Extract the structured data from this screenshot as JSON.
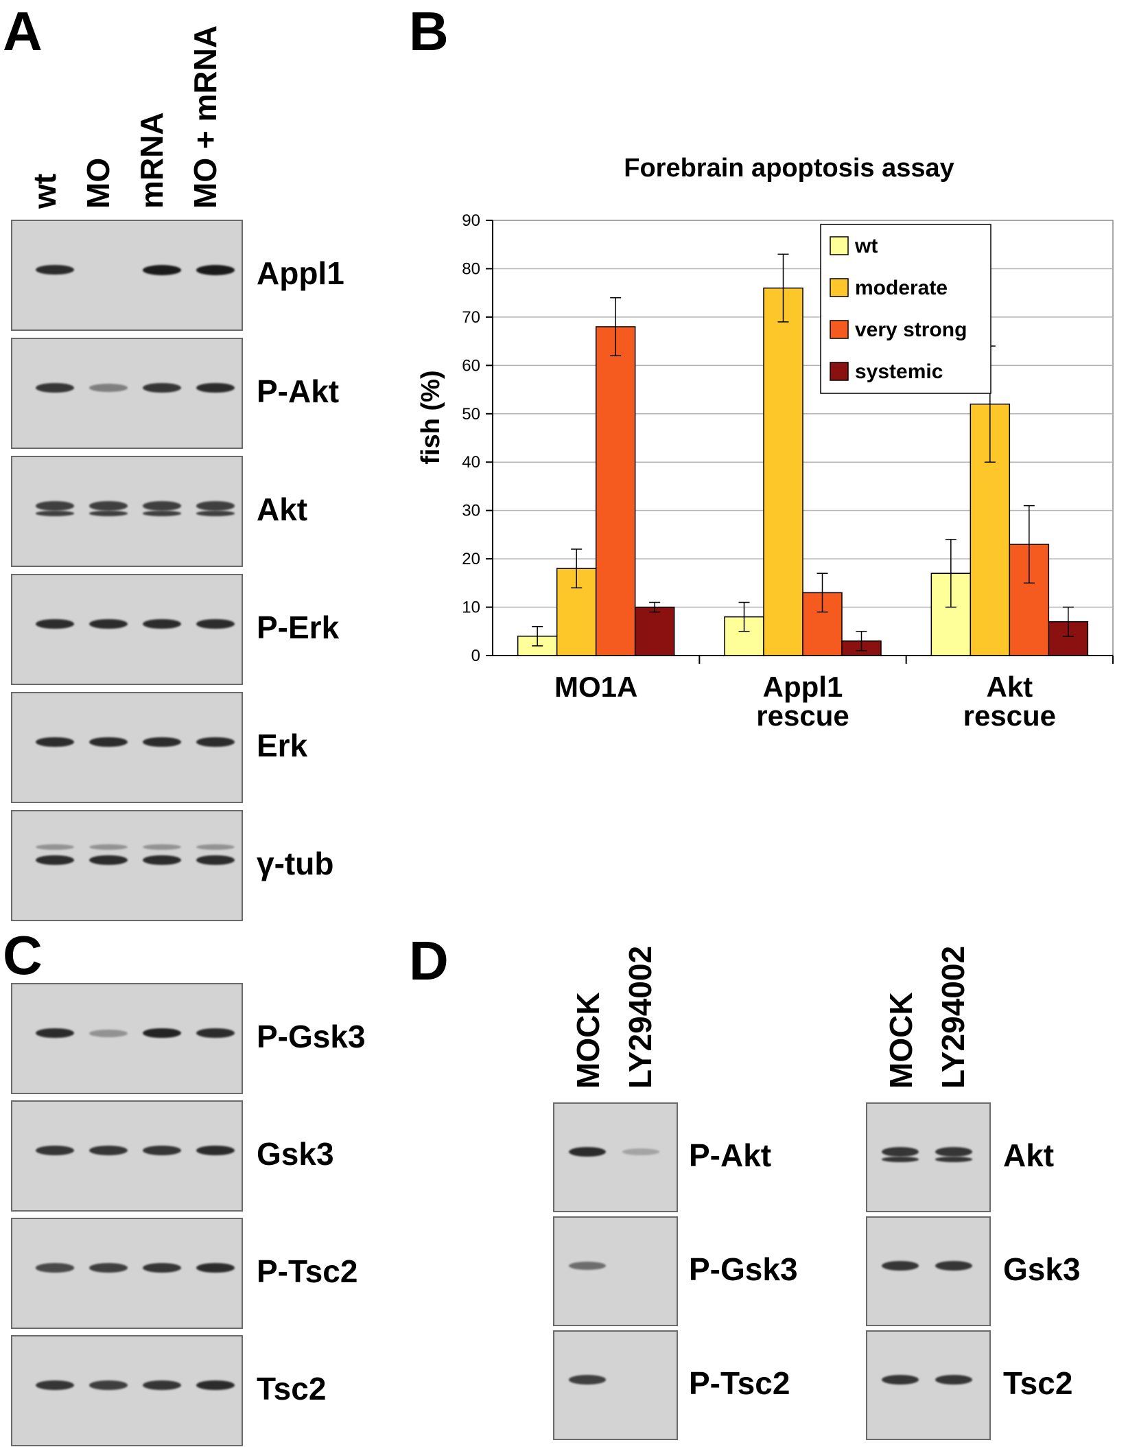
{
  "panels": {
    "A": {
      "letter": "A",
      "lanes": [
        "wt",
        "MO",
        "mRNA",
        "MO + mRNA"
      ],
      "blots": [
        {
          "label": "Appl1",
          "bands": [
            0.9,
            0.0,
            1.0,
            1.0
          ]
        },
        {
          "label": "P-Akt",
          "bands": [
            0.85,
            0.45,
            0.85,
            0.9
          ]
        },
        {
          "label": "Akt",
          "bands": [
            0.8,
            0.8,
            0.8,
            0.8
          ]
        },
        {
          "label": "P-Erk",
          "bands": [
            0.9,
            0.9,
            0.9,
            0.9
          ]
        },
        {
          "label": "Erk",
          "bands": [
            0.9,
            0.9,
            0.9,
            0.9
          ]
        },
        {
          "label": "γ-tub",
          "bands": [
            0.9,
            0.9,
            0.9,
            0.9
          ]
        }
      ]
    },
    "B": {
      "letter": "B"
    },
    "C": {
      "letter": "C",
      "blots": [
        {
          "label": "P-Gsk3",
          "bands": [
            0.9,
            0.35,
            0.95,
            0.9
          ]
        },
        {
          "label": "Gsk3",
          "bands": [
            0.85,
            0.85,
            0.85,
            0.9
          ]
        },
        {
          "label": "P-Tsc2",
          "bands": [
            0.75,
            0.8,
            0.85,
            0.9
          ]
        },
        {
          "label": "Tsc2",
          "bands": [
            0.85,
            0.8,
            0.85,
            0.9
          ]
        }
      ]
    },
    "D": {
      "letter": "D",
      "lanes": [
        "MOCK",
        "LY294002"
      ],
      "left_blots": [
        {
          "label": "P-Akt",
          "bands": [
            0.9,
            0.15
          ]
        },
        {
          "label": "P-Gsk3",
          "bands": [
            0.55,
            0.0
          ]
        },
        {
          "label": "P-Tsc2",
          "bands": [
            0.8,
            0.0
          ]
        }
      ],
      "right_blots": [
        {
          "label": "Akt",
          "bands": [
            0.85,
            0.85
          ]
        },
        {
          "label": "Gsk3",
          "bands": [
            0.85,
            0.85
          ]
        },
        {
          "label": "Tsc2",
          "bands": [
            0.85,
            0.85
          ]
        }
      ]
    }
  },
  "chart_data": {
    "type": "bar",
    "title": "Forebrain apoptosis assay",
    "ylabel": "fish (%)",
    "xlabel": "",
    "ylim": [
      0,
      90
    ],
    "yticks": [
      "0",
      "10",
      "20",
      "30",
      "40",
      "50",
      "60",
      "70",
      "80",
      "90"
    ],
    "categories": [
      [
        "MO1A"
      ],
      [
        "Appl1",
        "rescue"
      ],
      [
        "Akt",
        "rescue"
      ]
    ],
    "grid": true,
    "legend_position": "top-center",
    "series": [
      {
        "name": "wt",
        "color": "#ffff99",
        "values": [
          4,
          8,
          17
        ],
        "errors": [
          2,
          3,
          7
        ]
      },
      {
        "name": "moderate",
        "color": "#fdc72a",
        "values": [
          18,
          76,
          52
        ],
        "errors": [
          4,
          7,
          12
        ]
      },
      {
        "name": "very strong",
        "color": "#f55a1e",
        "values": [
          68,
          13,
          23
        ],
        "errors": [
          6,
          4,
          8
        ]
      },
      {
        "name": "systemic",
        "color": "#8b1010",
        "values": [
          10,
          3,
          7
        ],
        "errors": [
          1,
          2,
          3
        ]
      }
    ]
  }
}
